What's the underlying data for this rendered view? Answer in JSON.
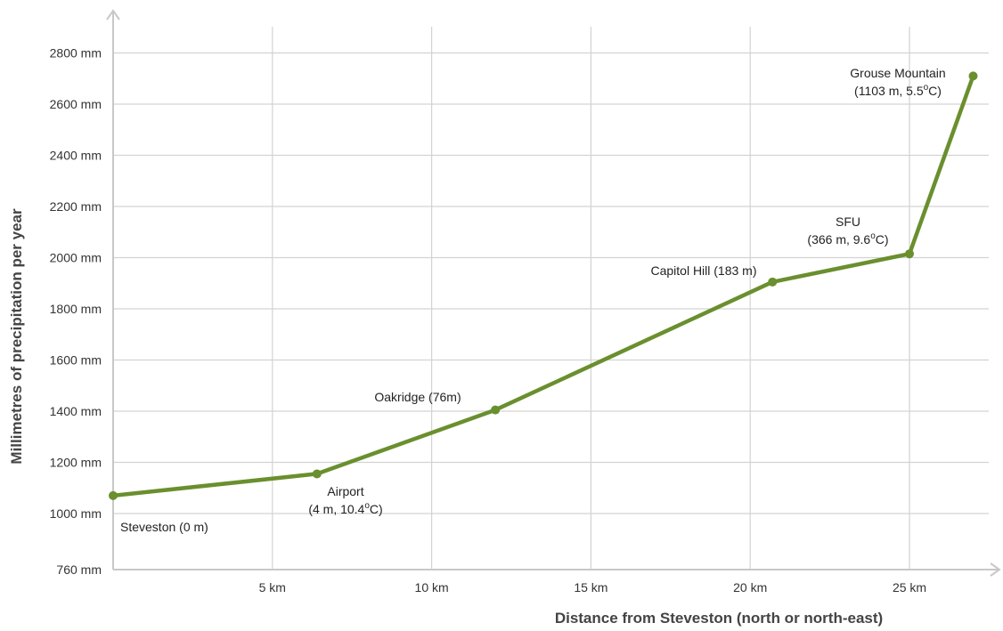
{
  "chart_data": {
    "type": "line",
    "xlabel": "Distance from Steveston (north or north-east)",
    "ylabel": "Millimetres of precipitation per year",
    "x_ticks": [
      {
        "value": 5,
        "label": "5 km"
      },
      {
        "value": 10,
        "label": "10 km"
      },
      {
        "value": 15,
        "label": "15 km"
      },
      {
        "value": 20,
        "label": "20 km"
      },
      {
        "value": 25,
        "label": "25 km"
      }
    ],
    "y_ticks": [
      {
        "value": 760,
        "label": "760 mm"
      },
      {
        "value": 1000,
        "label": "1000 mm"
      },
      {
        "value": 1200,
        "label": "1200 mm"
      },
      {
        "value": 1400,
        "label": "1400 mm"
      },
      {
        "value": 1600,
        "label": "1600 mm"
      },
      {
        "value": 1800,
        "label": "1800 mm"
      },
      {
        "value": 2000,
        "label": "2000 mm"
      },
      {
        "value": 2200,
        "label": "2200 mm"
      },
      {
        "value": 2400,
        "label": "2400 mm"
      },
      {
        "value": 2600,
        "label": "2600 mm"
      },
      {
        "value": 2800,
        "label": "2800 mm"
      }
    ],
    "xlim": [
      0,
      27.5
    ],
    "ylim": [
      760,
      2800
    ],
    "grid": true,
    "line_color": "#6a8f2e",
    "points": [
      {
        "name": "steveston",
        "x": 0,
        "y": 1070,
        "label_lines": [
          "Steveston (0 m)"
        ],
        "label_pos": "below-right"
      },
      {
        "name": "airport",
        "x": 6.4,
        "y": 1155,
        "label_lines": [
          "Airport",
          "(4 m, 10.4",
          "o",
          "C)"
        ],
        "label_pos": "below"
      },
      {
        "name": "oakridge",
        "x": 12,
        "y": 1405,
        "label_lines": [
          "Oakridge (76m)"
        ],
        "label_pos": "above-left"
      },
      {
        "name": "capitol-hill",
        "x": 20.7,
        "y": 1905,
        "label_lines": [
          "Capitol Hill (183 m)"
        ],
        "label_pos": "above-left"
      },
      {
        "name": "sfu",
        "x": 25,
        "y": 2015,
        "label_lines": [
          "SFU",
          "(366 m, 9.6",
          "o",
          "C)"
        ],
        "label_pos": "above-left"
      },
      {
        "name": "grouse-mountain",
        "x": 27,
        "y": 2710,
        "label_lines": [
          "Grouse Mountain",
          "(1103 m, 5.5",
          "o",
          "C)"
        ],
        "label_pos": "above-left"
      }
    ]
  }
}
